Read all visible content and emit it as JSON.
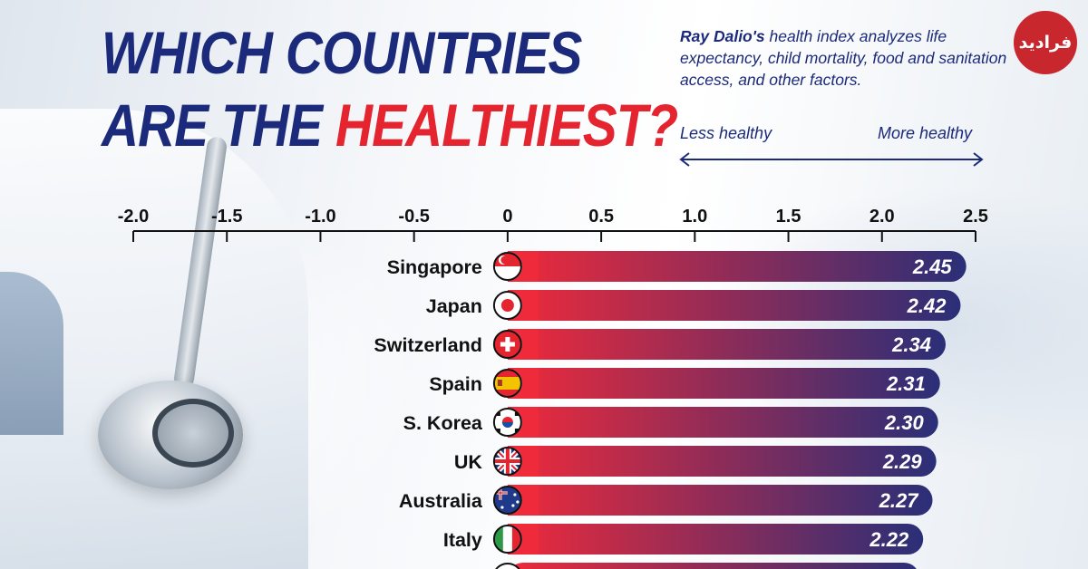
{
  "title": {
    "line1": "WHICH COUNTRIES",
    "line2_prefix": "ARE THE ",
    "line2_highlight": "HEALTHIEST?"
  },
  "subtitle": {
    "bold": "Ray Dalio's",
    "rest": " health index analyzes life expectancy, child mortality, food and sanitation access, and other factors."
  },
  "scale": {
    "less_label": "Less healthy",
    "more_label": "More healthy"
  },
  "logo_text": "فرادید",
  "colors": {
    "navy": "#1b2a7a",
    "red": "#e4242f",
    "bar_start": "#ef2a3a",
    "bar_end": "#2a2f78",
    "uk_label": "#1b2a7a"
  },
  "chart_data": {
    "type": "bar",
    "orientation": "horizontal",
    "xlim": [
      -2.0,
      2.5
    ],
    "ticks": [
      "-2.0",
      "-1.5",
      "-1.0",
      "-0.5",
      "0",
      "0.5",
      "1.0",
      "1.5",
      "2.0",
      "2.5"
    ],
    "categories": [
      "Singapore",
      "Japan",
      "Switzerland",
      "Spain",
      "S. Korea",
      "UK",
      "Australia",
      "Italy"
    ],
    "values": [
      2.45,
      2.42,
      2.34,
      2.31,
      2.3,
      2.29,
      2.27,
      2.22
    ],
    "value_labels": [
      "2.45",
      "2.42",
      "2.34",
      "2.31",
      "2.30",
      "2.29",
      "2.27",
      "2.22"
    ],
    "flag_icons": [
      "singapore-flag-icon",
      "japan-flag-icon",
      "switzerland-flag-icon",
      "spain-flag-icon",
      "south-korea-flag-icon",
      "uk-flag-icon",
      "australia-flag-icon",
      "italy-flag-icon"
    ]
  }
}
